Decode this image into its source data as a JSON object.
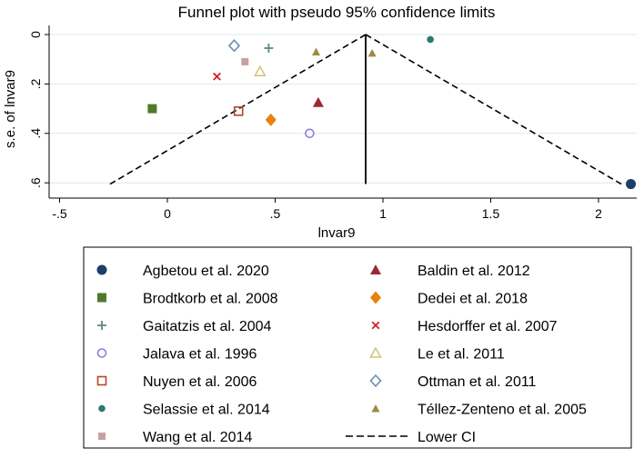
{
  "chart_data": {
    "type": "scatter",
    "title": "Funnel plot with pseudo 95% confidence limits",
    "xlabel": "lnvar9",
    "ylabel": "s.e. of lnvar9",
    "xlim": [
      -0.55,
      2.17
    ],
    "ylim": [
      0,
      0.63
    ],
    "y_reversed": true,
    "grid": true,
    "xticks": [
      -0.5,
      0,
      0.5,
      1,
      1.5,
      2
    ],
    "xtick_labels": [
      "-.5",
      "0",
      ".5",
      "1",
      "1.5",
      "2"
    ],
    "yticks": [
      0,
      0.2,
      0.4,
      0.6
    ],
    "ytick_labels": [
      "0",
      ".2",
      ".4",
      ".6"
    ],
    "pooled": 0.92,
    "ci_max_se": 0.605,
    "legend_placement": "bottom",
    "series": [
      {
        "name": "Agbetou et al. 2020",
        "marker": "circle",
        "color": "#1a3f6b",
        "points": [
          [
            2.15,
            0.605
          ]
        ]
      },
      {
        "name": "Brodtkorb et al. 2008",
        "marker": "square",
        "color": "#4f7a2c",
        "points": [
          [
            -0.07,
            0.3
          ]
        ]
      },
      {
        "name": "Gaitatzis et al. 2004",
        "marker": "plus",
        "color": "#5f8a80",
        "points": [
          [
            0.47,
            0.055
          ]
        ]
      },
      {
        "name": "Jalava et al. 1996",
        "marker": "circle-open",
        "color": "#8a7fe0",
        "points": [
          [
            0.66,
            0.4
          ]
        ]
      },
      {
        "name": "Nuyen et al. 2006",
        "marker": "square-open",
        "color": "#b04a25",
        "points": [
          [
            0.33,
            0.31
          ]
        ]
      },
      {
        "name": "Selassie et al. 2014",
        "marker": "circle-small",
        "color": "#2a7a6e",
        "points": [
          [
            1.22,
            0.02
          ]
        ]
      },
      {
        "name": "Wang et al. 2014",
        "marker": "square-small",
        "color": "#c9a0a0",
        "points": [
          [
            0.36,
            0.11
          ]
        ]
      },
      {
        "name": "Baldin et al. 2012",
        "marker": "triangle",
        "color": "#9b2a35",
        "points": [
          [
            0.7,
            0.275
          ]
        ]
      },
      {
        "name": "Dedei et al. 2018",
        "marker": "diamond",
        "color": "#e8820c",
        "points": [
          [
            0.48,
            0.345
          ]
        ]
      },
      {
        "name": "Hesdorffer et al. 2007",
        "marker": "x",
        "color": "#d0202a",
        "points": [
          [
            0.23,
            0.17
          ]
        ]
      },
      {
        "name": "Le et al. 2011",
        "marker": "triangle-open",
        "color": "#d2c27a",
        "points": [
          [
            0.43,
            0.15
          ]
        ]
      },
      {
        "name": "Ottman et al. 2011",
        "marker": "diamond-open",
        "color": "#6a8db0",
        "points": [
          [
            0.31,
            0.045
          ]
        ]
      },
      {
        "name": "Téllez-Zenteno et al. 2005",
        "marker": "triangle-small",
        "color": "#a08a45",
        "points": [
          [
            0.69,
            0.07
          ],
          [
            0.95,
            0.075
          ]
        ]
      }
    ],
    "lines": [
      {
        "name": "Lower CI",
        "style": "dashed"
      },
      {
        "name": "Upper CI",
        "style": "dashed"
      },
      {
        "name": "Pooled",
        "style": "solid"
      }
    ]
  }
}
